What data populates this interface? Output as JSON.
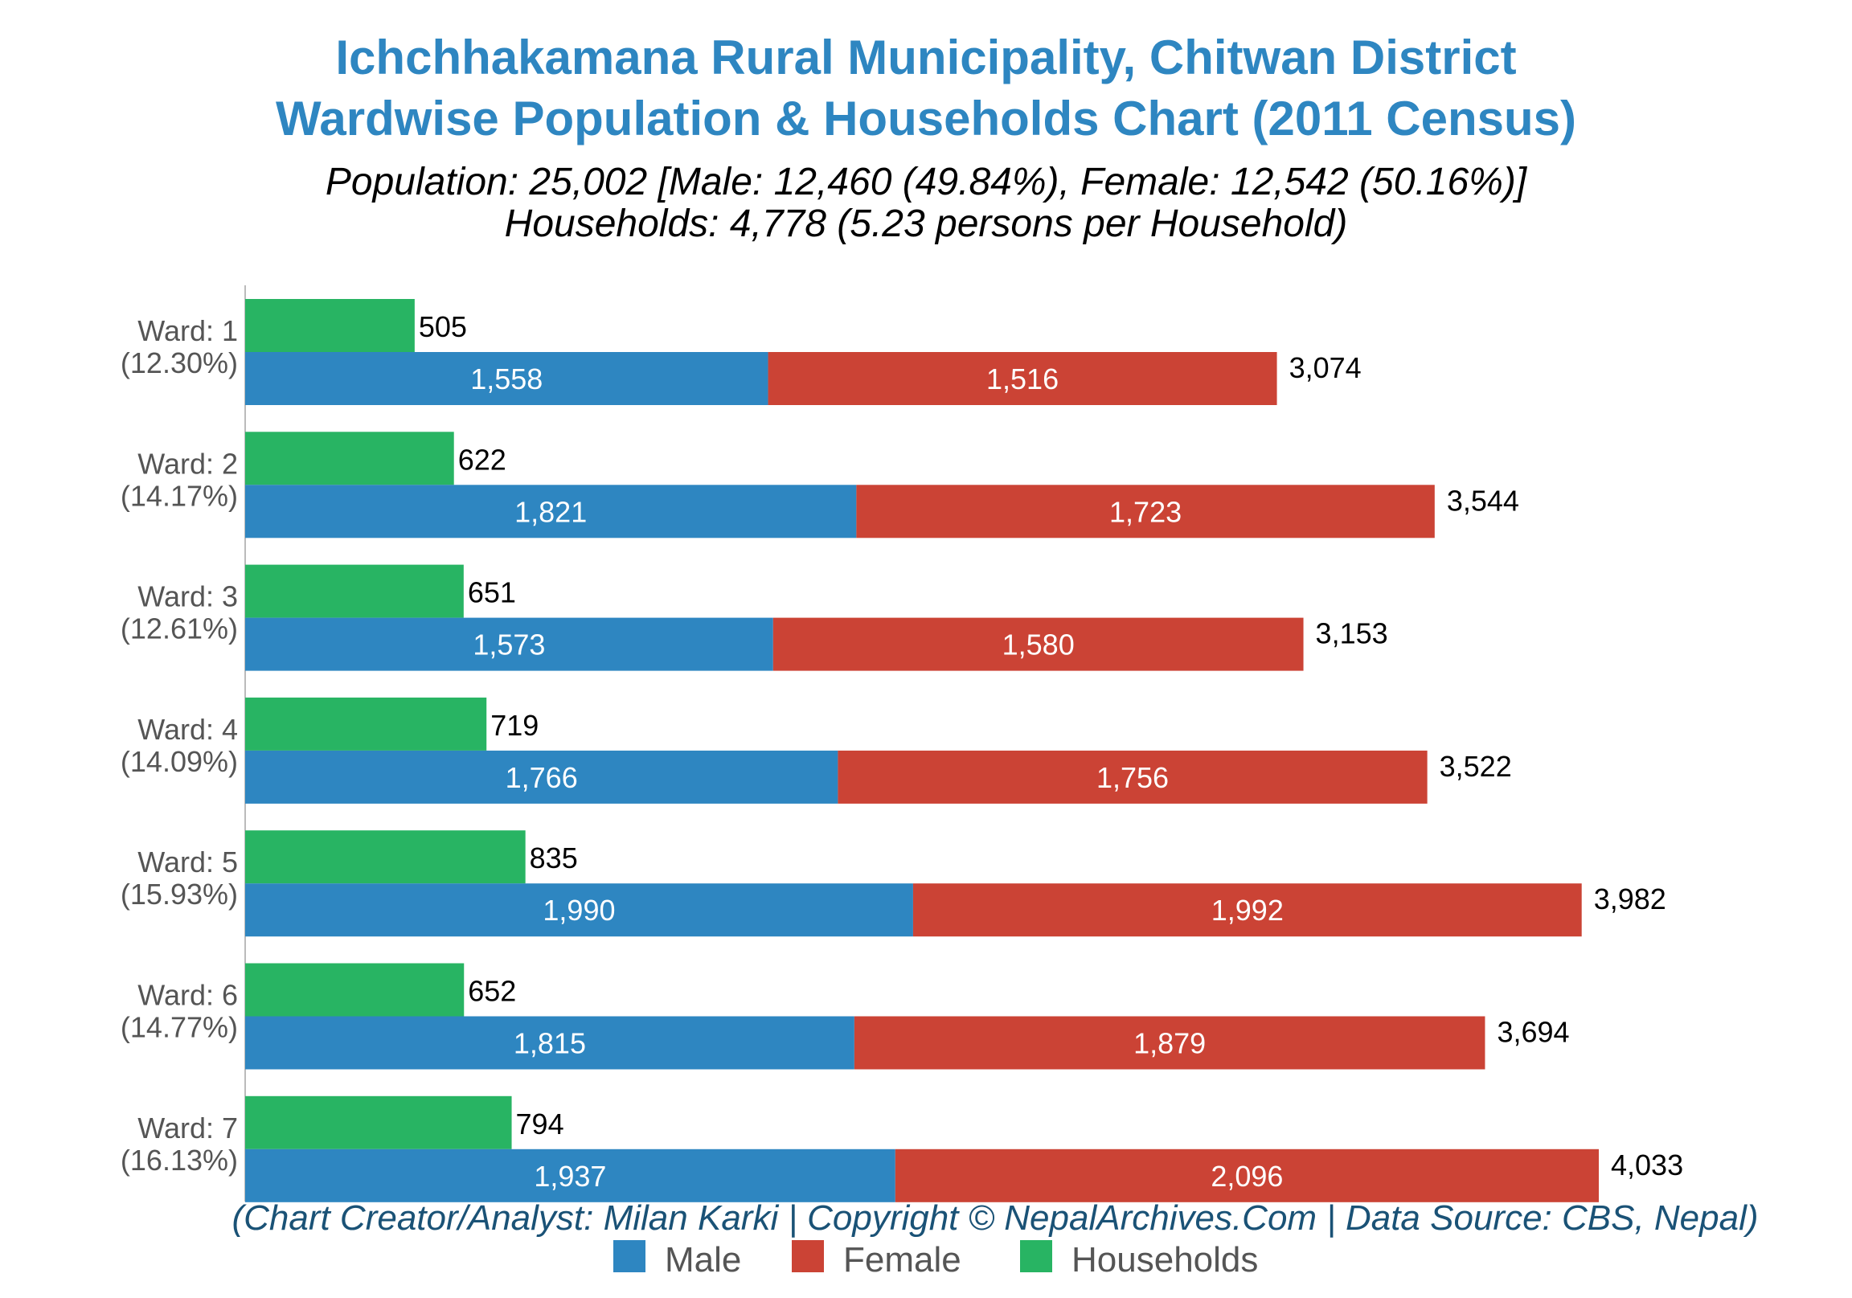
{
  "colors": {
    "title": "#2e86c1",
    "subtitle": "#000000",
    "male": "#2e86c1",
    "female": "#cb4335",
    "households": "#28b463",
    "footer": "#1a5276",
    "ward_label": "#555555",
    "axis": "#bbbbbb",
    "value_label": "#000000",
    "inner_label": "#ffffff",
    "legend_text": "#555555"
  },
  "chart_data": {
    "type": "bar",
    "orientation": "horizontal",
    "title": [
      "Ichchhakamana Rural Municipality, Chitwan District",
      "Wardwise Population & Households Chart (2011 Census)"
    ],
    "subtitle": [
      "Population: 25,002 [Male: 12,460 (49.84%), Female: 12,542 (50.16%)]",
      "Households: 4,778 (5.23 persons per Household)"
    ],
    "footer": "(Chart Creator/Analyst: Milan Karki | Copyright © NepalArchives.Com | Data Source: CBS, Nepal)",
    "categories": [
      "Ward: 1",
      "Ward: 2",
      "Ward: 3",
      "Ward: 4",
      "Ward: 5",
      "Ward: 6",
      "Ward: 7"
    ],
    "category_shares": [
      "(12.30%)",
      "(14.17%)",
      "(12.61%)",
      "(14.09%)",
      "(15.93%)",
      "(14.77%)",
      "(16.13%)"
    ],
    "series": [
      {
        "name": "Male",
        "values": [
          1558,
          1821,
          1573,
          1766,
          1990,
          1815,
          1937
        ],
        "labels": [
          "1,558",
          "1,821",
          "1,573",
          "1,766",
          "1,990",
          "1,815",
          "1,937"
        ]
      },
      {
        "name": "Female",
        "values": [
          1516,
          1723,
          1580,
          1756,
          1992,
          1879,
          2096
        ],
        "labels": [
          "1,516",
          "1,723",
          "1,580",
          "1,756",
          "1,992",
          "1,879",
          "2,096"
        ]
      },
      {
        "name": "Households",
        "values": [
          505,
          622,
          651,
          719,
          835,
          652,
          794
        ],
        "labels": [
          "505",
          "622",
          "651",
          "719",
          "835",
          "652",
          "794"
        ]
      }
    ],
    "totals": [
      3074,
      3544,
      3153,
      3522,
      3982,
      3694,
      4033
    ],
    "total_labels": [
      "3,074",
      "3,544",
      "3,153",
      "3,522",
      "3,982",
      "3,694",
      "4,033"
    ],
    "xlim": [
      0,
      4033
    ],
    "grid": false,
    "legend": [
      "Male",
      "Female",
      "Households"
    ],
    "legend_position": "bottom"
  }
}
